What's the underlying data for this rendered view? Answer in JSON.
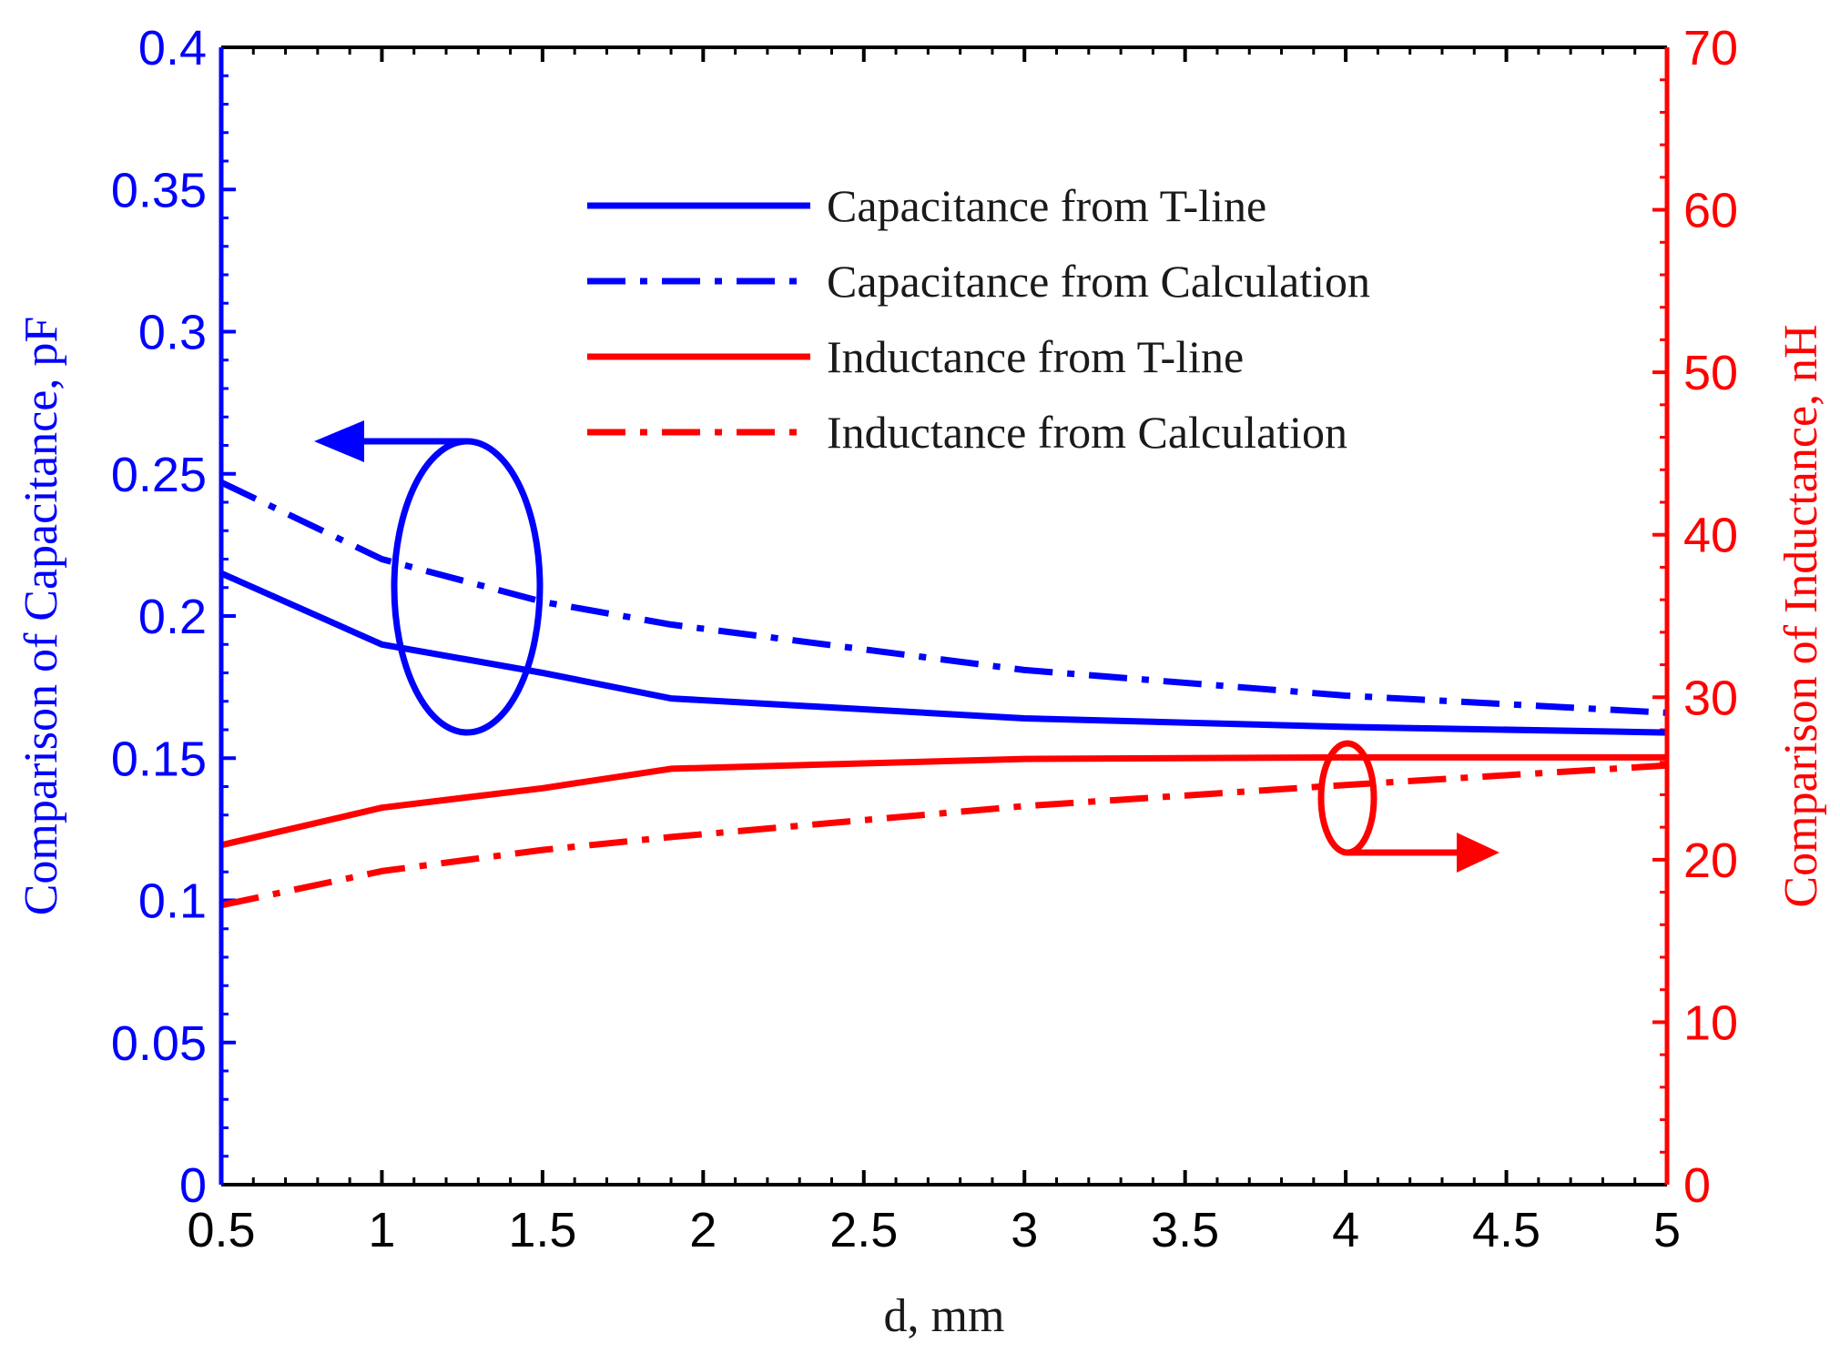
{
  "chart_data": {
    "type": "line",
    "title": "",
    "xlabel": "d, mm",
    "ylabel_left": "Comparison of Capacitance, pF",
    "ylabel_right": "Comparison of Inductance, nH",
    "xlim": [
      0.5,
      5
    ],
    "ylim_left": [
      0,
      0.4
    ],
    "ylim_right": [
      0,
      70
    ],
    "x_ticks": [
      "0.5",
      "1",
      "1.5",
      "2",
      "2.5",
      "3",
      "3.5",
      "4",
      "4.5",
      "5"
    ],
    "y_left_ticks": [
      "0",
      "0.05",
      "0.1",
      "0.15",
      "0.2",
      "0.25",
      "0.3",
      "0.35",
      "0.4"
    ],
    "y_right_ticks": [
      "0",
      "10",
      "20",
      "30",
      "40",
      "50",
      "60",
      "70"
    ],
    "grid": false,
    "legend_position": "top-right",
    "series": [
      {
        "name": "Capacitance from T-line",
        "axis": "left",
        "color": "#0000ff",
        "style": "solid",
        "x": [
          0.5,
          1,
          1.5,
          1.9,
          3,
          4,
          5
        ],
        "values": [
          0.215,
          0.19,
          0.18,
          0.171,
          0.164,
          0.161,
          0.159
        ]
      },
      {
        "name": "Capacitance from Calculation",
        "axis": "left",
        "color": "#0000ff",
        "style": "dashdot",
        "x": [
          0.5,
          1,
          1.5,
          1.9,
          3,
          4,
          5
        ],
        "values": [
          0.247,
          0.22,
          0.205,
          0.197,
          0.181,
          0.172,
          0.166
        ]
      },
      {
        "name": "Inductance from T-line",
        "axis": "right",
        "color": "#ff0000",
        "style": "solid",
        "x": [
          0.5,
          1,
          1.5,
          1.9,
          3,
          4,
          5
        ],
        "values": [
          20.9,
          23.2,
          24.4,
          25.6,
          26.2,
          26.3,
          26.3
        ]
      },
      {
        "name": "Inductance from Calculation",
        "axis": "right",
        "color": "#ff0000",
        "style": "dashdot",
        "x": [
          0.5,
          1,
          1.5,
          1.9,
          3,
          4,
          5
        ],
        "values": [
          17.2,
          19.3,
          20.6,
          21.4,
          23.3,
          24.6,
          25.8
        ]
      }
    ],
    "annotations": [
      {
        "kind": "ellipse-arrow",
        "target": "capacitance curves",
        "arrow_direction": "left",
        "color": "#0000ff"
      },
      {
        "kind": "ellipse-arrow",
        "target": "inductance curves",
        "arrow_direction": "right",
        "color": "#ff0000"
      }
    ]
  }
}
